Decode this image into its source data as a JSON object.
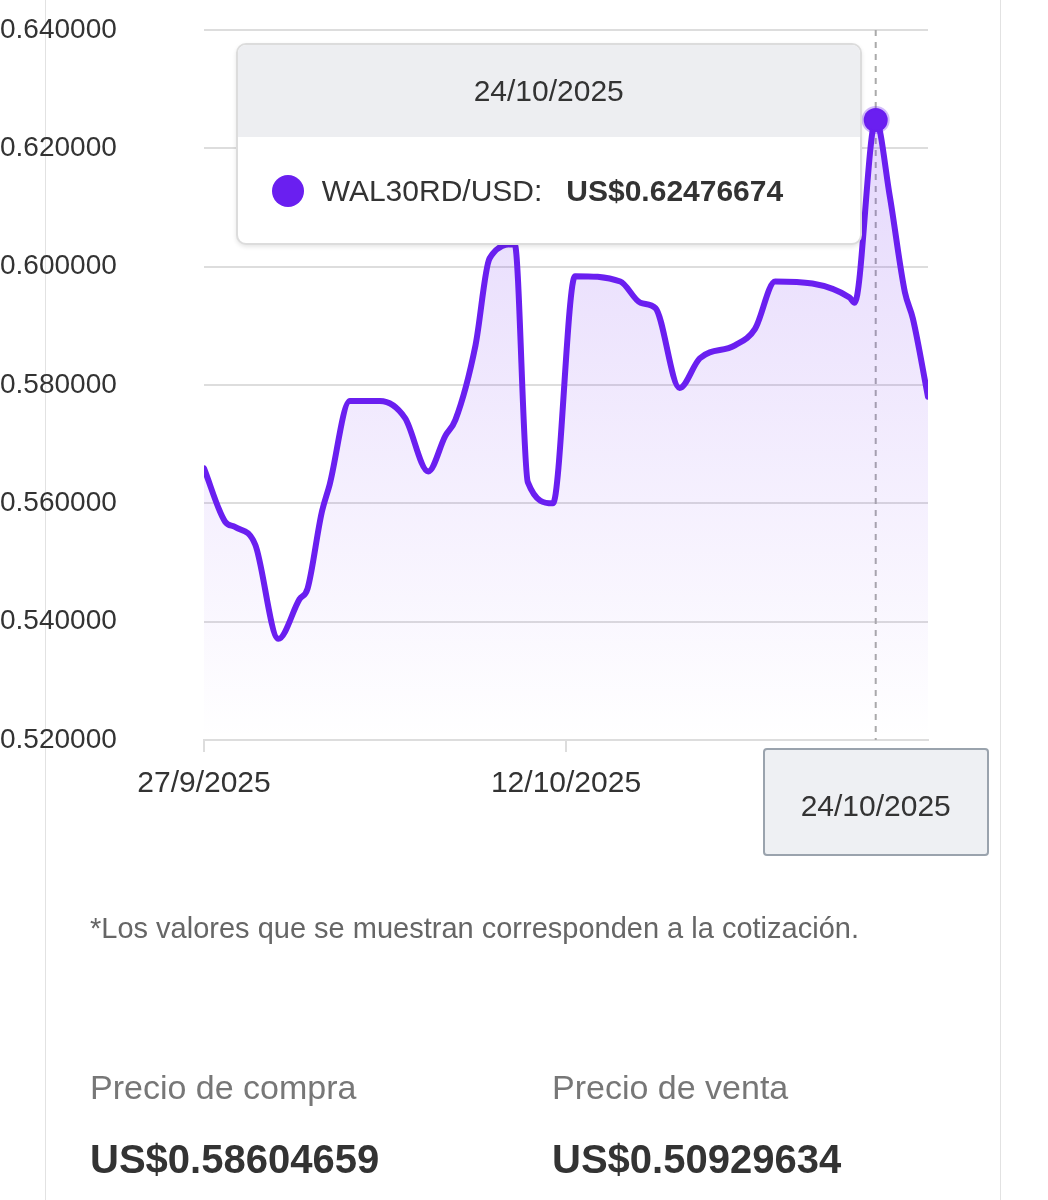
{
  "chart_data": {
    "type": "area",
    "x": [
      "2025-09-27T00:00",
      "2025-09-27T21:00",
      "2025-09-28T07:00",
      "2025-09-29T03:00",
      "2025-09-30T02:00",
      "2025-09-30T23:00",
      "2025-10-01T07:00",
      "2025-10-01T21:00",
      "2025-10-02T05:00",
      "2025-10-03T01:00",
      "2025-10-04T07:00",
      "2025-10-05T08:00",
      "2025-10-06T07:00",
      "2025-10-07T00:00",
      "2025-10-07T10:00",
      "2025-10-08T06:00",
      "2025-10-08T20:00",
      "2025-10-09T11:00",
      "2025-10-09T21:00",
      "2025-10-10T10:00",
      "2025-10-11T11:00",
      "2025-10-12T09:00",
      "2025-10-13T10:00",
      "2025-10-14T06:00",
      "2025-10-15T02:00",
      "2025-10-15T17:00",
      "2025-10-16T17:00",
      "2025-10-17T13:00",
      "2025-10-19T00:00",
      "2025-10-19T20:00",
      "2025-10-20T16:00",
      "2025-10-21T17:00",
      "2025-10-22T23:00",
      "2025-10-23T18:00",
      "2025-10-23T23:00",
      "2025-10-24T20:00",
      "2025-10-25T10:00",
      "2025-10-26T01:00",
      "2025-10-26T09:00",
      "2025-10-27T00:00"
    ],
    "series": [
      {
        "name": "WAL30RD/USD:",
        "color": "#6a1ff0",
        "values": [
          0.5659,
          0.5569,
          0.556,
          0.553,
          0.5371,
          0.5438,
          0.5456,
          0.5584,
          0.5632,
          0.5773,
          0.5773,
          0.5744,
          0.5654,
          0.5714,
          0.5741,
          0.5867,
          0.6014,
          null,
          0.6038,
          0.5636,
          0.56,
          0.5984,
          null,
          0.5975,
          0.5939,
          0.593,
          0.5795,
          0.5845,
          0.5867,
          0.5895,
          0.5975,
          null,
          null,
          0.5948,
          0.5939,
          0.6248,
          0.6119,
          0.5957,
          0.5912,
          0.578
        ]
      }
    ],
    "xlim": [
      "2025-09-27",
      "2025-10-27"
    ],
    "xticks": [
      {
        "value": "2025-09-27",
        "label": "27/9/2025"
      },
      {
        "value": "2025-10-12",
        "label": "12/10/2025"
      }
    ],
    "ylim": [
      0.52,
      0.64
    ],
    "yticks": [
      {
        "value": 0.52,
        "label": "0.520000"
      },
      {
        "value": 0.54,
        "label": "0.540000"
      },
      {
        "value": 0.56,
        "label": "0.560000"
      },
      {
        "value": 0.58,
        "label": "0.580000"
      },
      {
        "value": 0.6,
        "label": "0.600000"
      },
      {
        "value": 0.62,
        "label": "0.620000"
      },
      {
        "value": 0.64,
        "label": "0.640000"
      }
    ],
    "grid": "y",
    "marker": "none",
    "line_style": "solid",
    "ref_lines": [
      {
        "axis": "x",
        "value": "2025-10-24T20:00",
        "label": "24/10/2025",
        "color": "#aaaaaa",
        "line_style": "dashed"
      }
    ],
    "annotations": [
      "24/10/2025",
      "US$0.62476674",
      "*Los valores que se muestran corresponden a la cotización.",
      "Precio de compra",
      "US$0.58604659",
      "Precio de venta",
      "US$0.50929634"
    ]
  }
}
